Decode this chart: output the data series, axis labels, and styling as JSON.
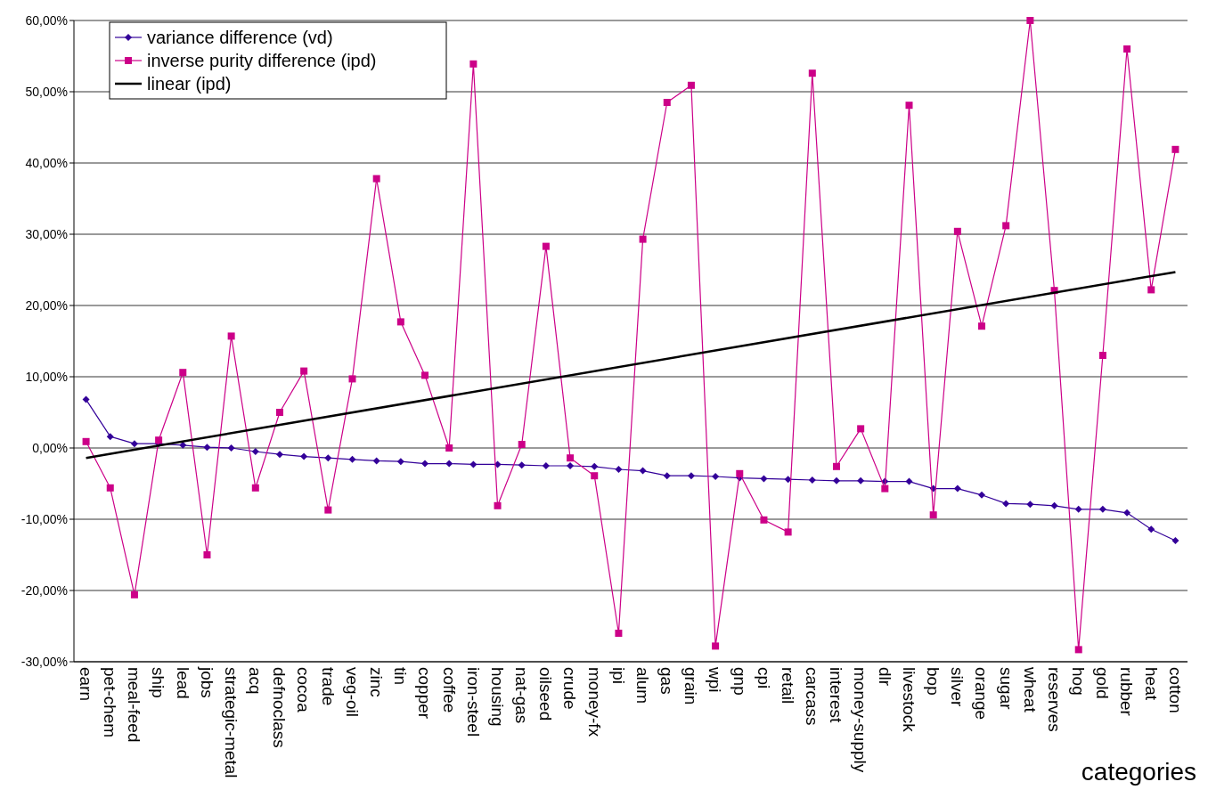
{
  "chart_data": {
    "type": "line",
    "xlabel": "categories",
    "categories": [
      "earn",
      "pet-chem",
      "meal-feed",
      "ship",
      "lead",
      "jobs",
      "strategic-metal",
      "acq",
      "defnoclass",
      "cocoa",
      "trade",
      "veg-oil",
      "zinc",
      "tin",
      "copper",
      "coffee",
      "iron-steel",
      "housing",
      "nat-gas",
      "oilseed",
      "crude",
      "money-fx",
      "ipi",
      "alum",
      "gas",
      "grain",
      "wpi",
      "gnp",
      "cpi",
      "retail",
      "carcass",
      "interest",
      "money-supply",
      "dlr",
      "livestock",
      "bop",
      "silver",
      "orange",
      "sugar",
      "wheat",
      "reserves",
      "hog",
      "gold",
      "rubber",
      "heat",
      "cotton"
    ],
    "series": [
      {
        "name": "variance difference (vd)",
        "color": "#330099",
        "marker": "diamond",
        "values": [
          6.8,
          1.6,
          0.6,
          0.6,
          0.4,
          0.1,
          0.0,
          -0.5,
          -0.9,
          -1.2,
          -1.4,
          -1.6,
          -1.8,
          -1.9,
          -2.2,
          -2.2,
          -2.3,
          -2.3,
          -2.4,
          -2.5,
          -2.5,
          -2.6,
          -3.0,
          -3.2,
          -3.9,
          -3.9,
          -4.0,
          -4.2,
          -4.3,
          -4.4,
          -4.5,
          -4.6,
          -4.6,
          -4.7,
          -4.7,
          -5.7,
          -5.7,
          -6.6,
          -7.8,
          -7.9,
          -8.1,
          -8.6,
          -8.6,
          -9.1,
          -11.4,
          -13.0
        ]
      },
      {
        "name": "inverse purity difference (ipd)",
        "color": "#cc0088",
        "marker": "square",
        "values": [
          0.9,
          -5.6,
          -20.6,
          1.1,
          10.6,
          -15.0,
          15.7,
          -5.6,
          5.0,
          10.8,
          -8.7,
          9.7,
          37.8,
          17.7,
          10.2,
          0.0,
          53.9,
          -8.1,
          0.5,
          28.3,
          -1.4,
          -3.9,
          -26.0,
          29.3,
          48.5,
          50.9,
          -27.8,
          -3.6,
          -10.1,
          -11.8,
          52.6,
          -2.6,
          2.7,
          -5.7,
          48.1,
          -9.4,
          30.4,
          17.1,
          31.2,
          60.0,
          22.1,
          -28.3,
          13.0,
          56.0,
          22.2,
          41.9
        ]
      },
      {
        "name": "linear (ipd)",
        "color": "#000000",
        "marker": "none",
        "x": [
          "earn",
          "cotton"
        ],
        "values": [
          -1.4,
          24.7
        ]
      }
    ],
    "ylim": [
      -30,
      60
    ],
    "yticks": [
      {
        "value": -30,
        "label": "-30,00%"
      },
      {
        "value": -20,
        "label": "-20,00%"
      },
      {
        "value": -10,
        "label": "-10,00%"
      },
      {
        "value": 0,
        "label": "0,00%"
      },
      {
        "value": 10,
        "label": "10,00%"
      },
      {
        "value": 20,
        "label": "20,00%"
      },
      {
        "value": 30,
        "label": "30,00%"
      },
      {
        "value": 40,
        "label": "40,00%"
      },
      {
        "value": 50,
        "label": "50,00%"
      },
      {
        "value": 60,
        "label": "60,00%"
      }
    ],
    "grid": "y",
    "legend": "top left",
    "line_style": "solid"
  }
}
